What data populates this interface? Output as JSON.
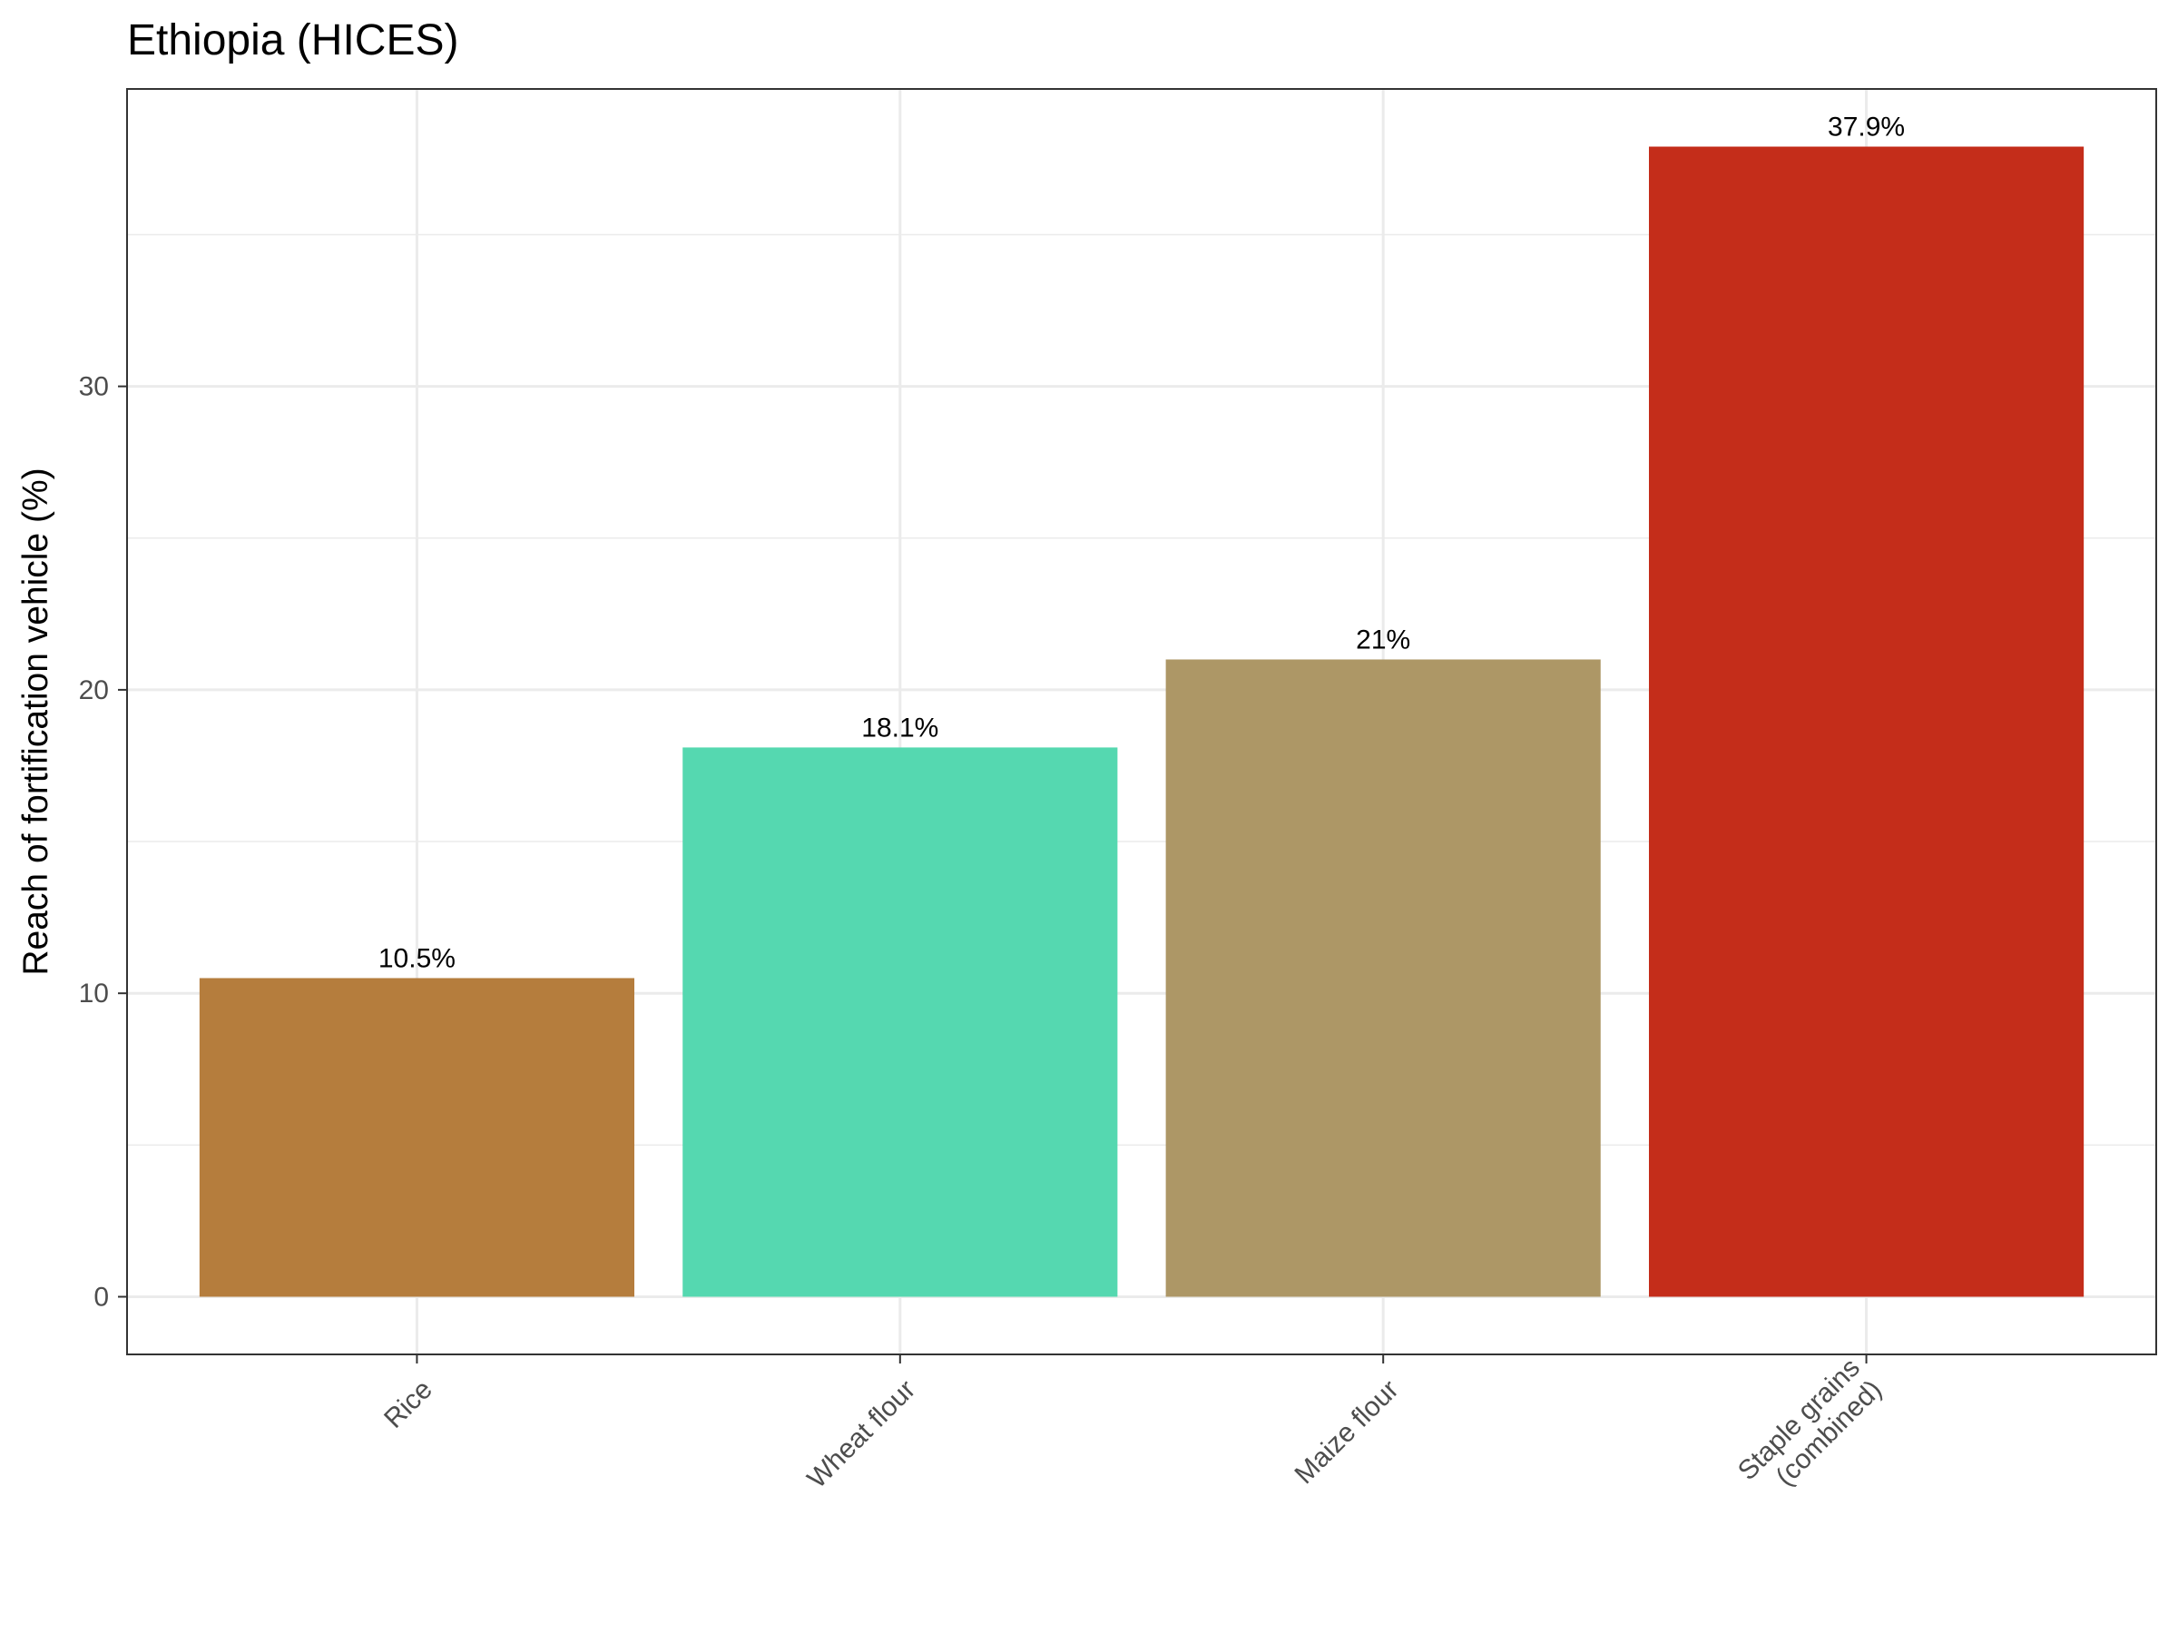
{
  "chart_data": {
    "type": "bar",
    "title": "Ethiopia (HICES)",
    "xlabel": "",
    "ylabel": "Reach of fortification vehicle (%)",
    "categories": [
      [
        "Rice"
      ],
      [
        "Wheat flour"
      ],
      [
        "Maize flour"
      ],
      [
        "Staple grains",
        "(combined)"
      ]
    ],
    "values": [
      10.5,
      18.1,
      21.0,
      37.9
    ],
    "data_labels": [
      "10.5%",
      "18.1%",
      "21%",
      "37.9%"
    ],
    "colors": [
      "#B57D3D",
      "#55D8B0",
      "#AD9766",
      "#C42D1A"
    ],
    "yticks": [
      0,
      10,
      20,
      30
    ],
    "ylim": [
      -1.9,
      39.8
    ],
    "grid": true,
    "legend": "none"
  }
}
